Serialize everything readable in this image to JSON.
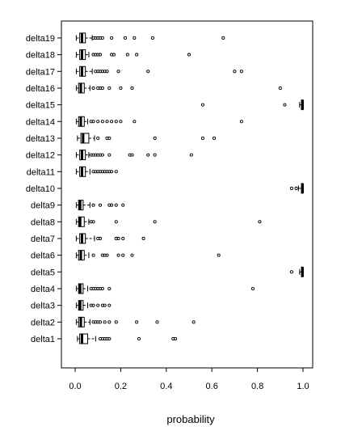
{
  "chart_data": {
    "type": "boxplot",
    "orientation": "horizontal",
    "title": "",
    "xlabel": "probability",
    "ylabel": "",
    "xlim": [
      -0.02,
      1.04
    ],
    "xticks": [
      0.0,
      0.2,
      0.4,
      0.6,
      0.8,
      1.0
    ],
    "xtick_labels": [
      "0.0",
      "0.2",
      "0.4",
      "0.6",
      "0.8",
      "1.0"
    ],
    "grid": false,
    "series": [
      {
        "name": "delta1",
        "q1": 0.02,
        "median": 0.03,
        "q3": 0.055,
        "whisker_low": 0.01,
        "whisker_high": 0.09,
        "outliers": [
          0.11,
          0.12,
          0.13,
          0.14,
          0.15,
          0.28,
          0.43,
          0.44
        ]
      },
      {
        "name": "delta2",
        "q1": 0.015,
        "median": 0.025,
        "q3": 0.04,
        "whisker_low": 0.005,
        "whisker_high": 0.065,
        "outliers": [
          0.08,
          0.09,
          0.1,
          0.11,
          0.13,
          0.15,
          0.18,
          0.27,
          0.36,
          0.52
        ]
      },
      {
        "name": "delta3",
        "q1": 0.015,
        "median": 0.022,
        "q3": 0.035,
        "whisker_low": 0.005,
        "whisker_high": 0.055,
        "outliers": [
          0.07,
          0.08,
          0.1,
          0.12,
          0.13,
          0.15
        ]
      },
      {
        "name": "delta4",
        "q1": 0.015,
        "median": 0.022,
        "q3": 0.035,
        "whisker_low": 0.005,
        "whisker_high": 0.055,
        "outliers": [
          0.07,
          0.08,
          0.09,
          0.1,
          0.11,
          0.12,
          0.15,
          0.78
        ]
      },
      {
        "name": "delta5",
        "q1": 0.993,
        "median": 0.998,
        "q3": 1.0,
        "whisker_low": 0.985,
        "whisker_high": 1.0,
        "outliers": [
          0.95
        ]
      },
      {
        "name": "delta6",
        "q1": 0.015,
        "median": 0.025,
        "q3": 0.04,
        "whisker_low": 0.005,
        "whisker_high": 0.06,
        "outliers": [
          0.08,
          0.12,
          0.13,
          0.14,
          0.19,
          0.21,
          0.25,
          0.63
        ]
      },
      {
        "name": "delta7",
        "q1": 0.02,
        "median": 0.03,
        "q3": 0.045,
        "whisker_low": 0.005,
        "whisker_high": 0.085,
        "outliers": [
          0.1,
          0.11,
          0.18,
          0.19,
          0.21,
          0.3
        ]
      },
      {
        "name": "delta8",
        "q1": 0.015,
        "median": 0.022,
        "q3": 0.04,
        "whisker_low": 0.005,
        "whisker_high": 0.06,
        "outliers": [
          0.07,
          0.08,
          0.18,
          0.35,
          0.81
        ]
      },
      {
        "name": "delta9",
        "q1": 0.015,
        "median": 0.022,
        "q3": 0.035,
        "whisker_low": 0.005,
        "whisker_high": 0.065,
        "outliers": [
          0.08,
          0.11,
          0.15,
          0.16,
          0.18,
          0.21
        ]
      },
      {
        "name": "delta10",
        "q1": 0.993,
        "median": 0.998,
        "q3": 1.0,
        "whisker_low": 0.98,
        "whisker_high": 1.0,
        "outliers": [
          0.95,
          0.97
        ]
      },
      {
        "name": "delta11",
        "q1": 0.02,
        "median": 0.03,
        "q3": 0.045,
        "whisker_low": 0.005,
        "whisker_high": 0.065,
        "outliers": [
          0.08,
          0.09,
          0.1,
          0.11,
          0.12,
          0.13,
          0.14,
          0.15,
          0.16,
          0.18
        ]
      },
      {
        "name": "delta12",
        "q1": 0.02,
        "median": 0.03,
        "q3": 0.045,
        "whisker_low": 0.005,
        "whisker_high": 0.06,
        "outliers": [
          0.07,
          0.08,
          0.09,
          0.1,
          0.11,
          0.12,
          0.15,
          0.24,
          0.25,
          0.32,
          0.35,
          0.51
        ]
      },
      {
        "name": "delta13",
        "q1": 0.025,
        "median": 0.035,
        "q3": 0.06,
        "whisker_low": 0.01,
        "whisker_high": 0.085,
        "outliers": [
          0.1,
          0.14,
          0.15,
          0.35,
          0.56,
          0.61
        ]
      },
      {
        "name": "delta14",
        "q1": 0.015,
        "median": 0.025,
        "q3": 0.04,
        "whisker_low": 0.005,
        "whisker_high": 0.055,
        "outliers": [
          0.07,
          0.08,
          0.1,
          0.12,
          0.14,
          0.16,
          0.18,
          0.2,
          0.26,
          0.73
        ]
      },
      {
        "name": "delta15",
        "q1": 0.993,
        "median": 0.998,
        "q3": 1.0,
        "whisker_low": 0.985,
        "whisker_high": 1.0,
        "outliers": [
          0.56,
          0.92
        ]
      },
      {
        "name": "delta16",
        "q1": 0.015,
        "median": 0.025,
        "q3": 0.04,
        "whisker_low": 0.005,
        "whisker_high": 0.065,
        "outliers": [
          0.08,
          0.1,
          0.11,
          0.12,
          0.15,
          0.2,
          0.25,
          0.9
        ]
      },
      {
        "name": "delta17",
        "q1": 0.02,
        "median": 0.03,
        "q3": 0.045,
        "whisker_low": 0.005,
        "whisker_high": 0.075,
        "outliers": [
          0.09,
          0.1,
          0.11,
          0.12,
          0.13,
          0.14,
          0.19,
          0.32,
          0.7,
          0.73
        ]
      },
      {
        "name": "delta18",
        "q1": 0.02,
        "median": 0.03,
        "q3": 0.045,
        "whisker_low": 0.005,
        "whisker_high": 0.06,
        "outliers": [
          0.08,
          0.09,
          0.1,
          0.11,
          0.16,
          0.17,
          0.23,
          0.27,
          0.5
        ]
      },
      {
        "name": "delta19",
        "q1": 0.02,
        "median": 0.03,
        "q3": 0.045,
        "whisker_low": 0.005,
        "whisker_high": 0.075,
        "outliers": [
          0.08,
          0.09,
          0.1,
          0.11,
          0.12,
          0.16,
          0.22,
          0.26,
          0.34,
          0.65
        ]
      }
    ]
  }
}
